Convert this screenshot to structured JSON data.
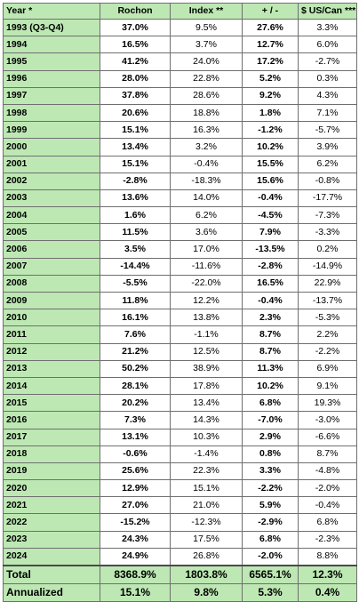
{
  "headers": [
    "Year *",
    "Rochon",
    "Index **",
    "+ / -",
    "$ US/Can ***"
  ],
  "rows": [
    [
      "1993 (Q3-Q4)",
      "37.0%",
      "9.5%",
      "27.6%",
      "3.3%"
    ],
    [
      "1994",
      "16.5%",
      "3.7%",
      "12.7%",
      "6.0%"
    ],
    [
      "1995",
      "41.2%",
      "24.0%",
      "17.2%",
      "-2.7%"
    ],
    [
      "1996",
      "28.0%",
      "22.8%",
      "5.2%",
      "0.3%"
    ],
    [
      "1997",
      "37.8%",
      "28.6%",
      "9.2%",
      "4.3%"
    ],
    [
      "1998",
      "20.6%",
      "18.8%",
      "1.8%",
      "7.1%"
    ],
    [
      "1999",
      "15.1%",
      "16.3%",
      "-1.2%",
      "-5.7%"
    ],
    [
      "2000",
      "13.4%",
      "3.2%",
      "10.2%",
      "3.9%"
    ],
    [
      "2001",
      "15.1%",
      "-0.4%",
      "15.5%",
      "6.2%"
    ],
    [
      "2002",
      "-2.8%",
      "-18.3%",
      "15.6%",
      "-0.8%"
    ],
    [
      "2003",
      "13.6%",
      "14.0%",
      "-0.4%",
      "-17.7%"
    ],
    [
      "2004",
      "1.6%",
      "6.2%",
      "-4.5%",
      "-7.3%"
    ],
    [
      "2005",
      "11.5%",
      "3.6%",
      "7.9%",
      "-3.3%"
    ],
    [
      "2006",
      "3.5%",
      "17.0%",
      "-13.5%",
      "0.2%"
    ],
    [
      "2007",
      "-14.4%",
      "-11.6%",
      "-2.8%",
      "-14.9%"
    ],
    [
      "2008",
      "-5.5%",
      "-22.0%",
      "16.5%",
      "22.9%"
    ],
    [
      "2009",
      "11.8%",
      "12.2%",
      "-0.4%",
      "-13.7%"
    ],
    [
      "2010",
      "16.1%",
      "13.8%",
      "2.3%",
      "-5.3%"
    ],
    [
      "2011",
      "7.6%",
      "-1.1%",
      "8.7%",
      "2.2%"
    ],
    [
      "2012",
      "21.2%",
      "12.5%",
      "8.7%",
      "-2.2%"
    ],
    [
      "2013",
      "50.2%",
      "38.9%",
      "11.3%",
      "6.9%"
    ],
    [
      "2014",
      "28.1%",
      "17.8%",
      "10.2%",
      "9.1%"
    ],
    [
      "2015",
      "20.2%",
      "13.4%",
      "6.8%",
      "19.3%"
    ],
    [
      "2016",
      "7.3%",
      "14.3%",
      "-7.0%",
      "-3.0%"
    ],
    [
      "2017",
      "13.1%",
      "10.3%",
      "2.9%",
      "-6.6%"
    ],
    [
      "2018",
      "-0.6%",
      "-1.4%",
      "0.8%",
      "8.7%"
    ],
    [
      "2019",
      "25.6%",
      "22.3%",
      "3.3%",
      "-4.8%"
    ],
    [
      "2020",
      "12.9%",
      "15.1%",
      "-2.2%",
      "-2.0%"
    ],
    [
      "2021",
      "27.0%",
      "21.0%",
      "5.9%",
      "-0.4%"
    ],
    [
      "2022",
      "-15.2%",
      "-12.3%",
      "-2.9%",
      "6.8%"
    ],
    [
      "2023",
      "24.3%",
      "17.5%",
      "6.8%",
      "-2.3%"
    ],
    [
      "2024",
      "24.9%",
      "26.8%",
      "-2.0%",
      "8.8%"
    ]
  ],
  "total": [
    "Total",
    "8368.9%",
    "1803.8%",
    "6565.1%",
    "12.3%"
  ],
  "annualized": [
    "Annualized",
    "15.1%",
    "9.8%",
    "5.3%",
    "0.4%"
  ],
  "colors": {
    "header_bg": "#bde8b3",
    "border": "#6f6f6f"
  }
}
